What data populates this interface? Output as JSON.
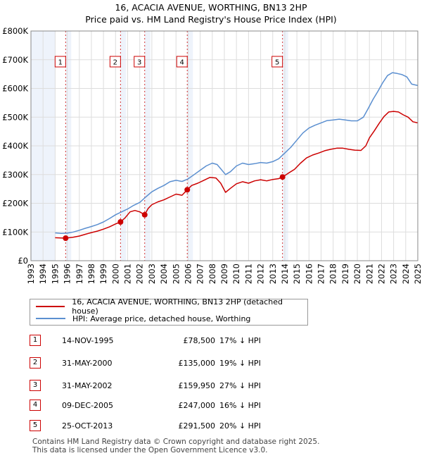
{
  "title_line1": "16, ACACIA AVENUE, WORTHING, BN13 2HP",
  "title_line2": "Price paid vs. HM Land Registry's House Price Index (HPI)",
  "colors": {
    "property": "#cc0000",
    "hpi": "#5b8fd0",
    "shade": "#eef3fb",
    "grid": "#dddddd",
    "marker_border": "#cc0000"
  },
  "chart_data": {
    "type": "line",
    "title": "Price paid vs. HM Land Registry's House Price Index (HPI)",
    "xlim": [
      1993,
      2025
    ],
    "ylim": [
      0,
      800000
    ],
    "x_ticks": [
      "1993",
      "1994",
      "1995",
      "1996",
      "1997",
      "1998",
      "1999",
      "2000",
      "2001",
      "2002",
      "2003",
      "2004",
      "2005",
      "2006",
      "2007",
      "2008",
      "2009",
      "2010",
      "2011",
      "2012",
      "2013",
      "2014",
      "2015",
      "2016",
      "2017",
      "2018",
      "2019",
      "2020",
      "2021",
      "2022",
      "2023",
      "2024",
      "2025"
    ],
    "y_ticks": [
      {
        "value": 0,
        "label": "£0"
      },
      {
        "value": 100000,
        "label": "£100K"
      },
      {
        "value": 200000,
        "label": "£200K"
      },
      {
        "value": 300000,
        "label": "£300K"
      },
      {
        "value": 400000,
        "label": "£400K"
      },
      {
        "value": 500000,
        "label": "£500K"
      },
      {
        "value": 600000,
        "label": "£600K"
      },
      {
        "value": 700000,
        "label": "£700K"
      },
      {
        "value": 800000,
        "label": "£800K"
      }
    ],
    "series": [
      {
        "name": "16, ACACIA AVENUE, WORTHING, BN13 2HP (detached house)",
        "color": "#cc0000",
        "points": [
          [
            1995.0,
            80000
          ],
          [
            1995.87,
            78500
          ],
          [
            1996.5,
            82000
          ],
          [
            1997.0,
            86000
          ],
          [
            1997.5,
            92000
          ],
          [
            1998.0,
            98000
          ],
          [
            1998.5,
            103000
          ],
          [
            1999.0,
            110000
          ],
          [
            1999.5,
            118000
          ],
          [
            2000.0,
            128000
          ],
          [
            2000.41,
            135000
          ],
          [
            2000.8,
            150000
          ],
          [
            2001.2,
            170000
          ],
          [
            2001.6,
            175000
          ],
          [
            2002.0,
            170000
          ],
          [
            2002.41,
            159950
          ],
          [
            2002.7,
            182000
          ],
          [
            2003.0,
            195000
          ],
          [
            2003.5,
            205000
          ],
          [
            2004.0,
            212000
          ],
          [
            2004.5,
            222000
          ],
          [
            2005.0,
            232000
          ],
          [
            2005.5,
            228000
          ],
          [
            2005.93,
            247000
          ],
          [
            2006.3,
            262000
          ],
          [
            2006.8,
            270000
          ],
          [
            2007.3,
            280000
          ],
          [
            2007.8,
            290000
          ],
          [
            2008.3,
            288000
          ],
          [
            2008.7,
            270000
          ],
          [
            2009.1,
            238000
          ],
          [
            2009.5,
            252000
          ],
          [
            2010.0,
            268000
          ],
          [
            2010.5,
            275000
          ],
          [
            2011.0,
            270000
          ],
          [
            2011.5,
            278000
          ],
          [
            2012.0,
            282000
          ],
          [
            2012.5,
            278000
          ],
          [
            2013.0,
            283000
          ],
          [
            2013.5,
            286000
          ],
          [
            2013.81,
            291500
          ],
          [
            2014.3,
            305000
          ],
          [
            2014.8,
            318000
          ],
          [
            2015.3,
            340000
          ],
          [
            2015.8,
            358000
          ],
          [
            2016.3,
            368000
          ],
          [
            2016.8,
            375000
          ],
          [
            2017.3,
            383000
          ],
          [
            2017.8,
            388000
          ],
          [
            2018.3,
            392000
          ],
          [
            2018.8,
            392000
          ],
          [
            2019.3,
            388000
          ],
          [
            2019.8,
            385000
          ],
          [
            2020.3,
            384000
          ],
          [
            2020.7,
            400000
          ],
          [
            2021.0,
            428000
          ],
          [
            2021.4,
            452000
          ],
          [
            2021.8,
            478000
          ],
          [
            2022.2,
            502000
          ],
          [
            2022.6,
            518000
          ],
          [
            2023.0,
            520000
          ],
          [
            2023.4,
            518000
          ],
          [
            2023.8,
            508000
          ],
          [
            2024.2,
            500000
          ],
          [
            2024.6,
            484000
          ],
          [
            2025.0,
            480000
          ]
        ]
      },
      {
        "name": "HPI: Average price, detached house, Worthing",
        "color": "#5b8fd0",
        "points": [
          [
            1995.0,
            97000
          ],
          [
            1995.5,
            95000
          ],
          [
            1996.0,
            96000
          ],
          [
            1996.5,
            100000
          ],
          [
            1997.0,
            106000
          ],
          [
            1997.5,
            113000
          ],
          [
            1998.0,
            119000
          ],
          [
            1998.5,
            126000
          ],
          [
            1999.0,
            135000
          ],
          [
            1999.5,
            147000
          ],
          [
            2000.0,
            160000
          ],
          [
            2000.5,
            170000
          ],
          [
            2001.0,
            180000
          ],
          [
            2001.5,
            193000
          ],
          [
            2002.0,
            203000
          ],
          [
            2002.5,
            222000
          ],
          [
            2003.0,
            240000
          ],
          [
            2003.5,
            252000
          ],
          [
            2004.0,
            262000
          ],
          [
            2004.5,
            275000
          ],
          [
            2005.0,
            280000
          ],
          [
            2005.5,
            276000
          ],
          [
            2006.0,
            285000
          ],
          [
            2006.5,
            300000
          ],
          [
            2007.0,
            315000
          ],
          [
            2007.5,
            330000
          ],
          [
            2008.0,
            340000
          ],
          [
            2008.4,
            335000
          ],
          [
            2008.8,
            315000
          ],
          [
            2009.1,
            300000
          ],
          [
            2009.5,
            310000
          ],
          [
            2010.0,
            330000
          ],
          [
            2010.5,
            340000
          ],
          [
            2011.0,
            335000
          ],
          [
            2011.5,
            338000
          ],
          [
            2012.0,
            342000
          ],
          [
            2012.5,
            340000
          ],
          [
            2013.0,
            345000
          ],
          [
            2013.5,
            355000
          ],
          [
            2014.0,
            375000
          ],
          [
            2014.5,
            395000
          ],
          [
            2015.0,
            420000
          ],
          [
            2015.5,
            445000
          ],
          [
            2016.0,
            462000
          ],
          [
            2016.5,
            472000
          ],
          [
            2017.0,
            480000
          ],
          [
            2017.5,
            488000
          ],
          [
            2018.0,
            490000
          ],
          [
            2018.5,
            493000
          ],
          [
            2019.0,
            490000
          ],
          [
            2019.5,
            487000
          ],
          [
            2020.0,
            487000
          ],
          [
            2020.5,
            500000
          ],
          [
            2020.9,
            530000
          ],
          [
            2021.3,
            562000
          ],
          [
            2021.7,
            590000
          ],
          [
            2022.1,
            620000
          ],
          [
            2022.5,
            645000
          ],
          [
            2022.9,
            655000
          ],
          [
            2023.3,
            652000
          ],
          [
            2023.7,
            648000
          ],
          [
            2024.1,
            640000
          ],
          [
            2024.5,
            615000
          ],
          [
            2025.0,
            610000
          ]
        ]
      }
    ],
    "sales": [
      {
        "num": "1",
        "date": "14-NOV-1995",
        "price": "£78,500",
        "hpi": "17% ↓ HPI",
        "x": 1995.87,
        "value": 78500
      },
      {
        "num": "2",
        "date": "31-MAY-2000",
        "price": "£135,000",
        "hpi": "19% ↓ HPI",
        "x": 2000.41,
        "value": 135000
      },
      {
        "num": "3",
        "date": "31-MAY-2002",
        "price": "£159,950",
        "hpi": "27% ↓ HPI",
        "x": 2002.41,
        "value": 159950
      },
      {
        "num": "4",
        "date": "09-DEC-2005",
        "price": "£247,000",
        "hpi": "16% ↓ HPI",
        "x": 2005.93,
        "value": 247000
      },
      {
        "num": "5",
        "date": "25-OCT-2013",
        "price": "£291,500",
        "hpi": "20% ↓ HPI",
        "x": 2013.81,
        "value": 291500
      }
    ],
    "shaded_until": 1995.0
  },
  "legend": {
    "property_label": "16, ACACIA AVENUE, WORTHING, BN13 2HP (detached house)",
    "hpi_label": "HPI: Average price, detached house, Worthing"
  },
  "footer_line1": "Contains HM Land Registry data © Crown copyright and database right 2025.",
  "footer_line2": "This data is licensed under the Open Government Licence v3.0."
}
